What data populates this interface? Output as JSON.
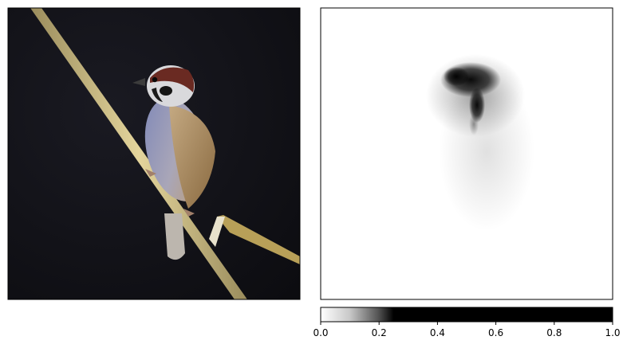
{
  "figure": {
    "panels": [
      {
        "name": "input-image",
        "content": "photo of a sparrow perched on a dry reed stem against a dark background"
      },
      {
        "name": "attribution-heatmap",
        "content": "grayscale saliency map concentrated on the bird's head and breast"
      }
    ]
  },
  "chart_data": [
    {
      "type": "heatmap",
      "title": "",
      "xlabel": "",
      "ylabel": "",
      "axes_visible": false,
      "grid": false,
      "colormap": "gray_r",
      "clim": [
        0,
        1
      ]
    },
    {
      "type": "colorbar",
      "orientation": "horizontal",
      "ticks": [
        0.0,
        0.2,
        0.4,
        0.6,
        0.8,
        1.0
      ],
      "tick_labels": [
        "0.0",
        "0.2",
        "0.4",
        "0.6",
        "0.8",
        "1.0"
      ],
      "range": [
        0,
        1
      ],
      "colormap_stops": [
        {
          "value": 0.0,
          "color": "#ffffff"
        },
        {
          "value": 0.1,
          "color": "#c8c8c8"
        },
        {
          "value": 0.2,
          "color": "#505050"
        },
        {
          "value": 0.25,
          "color": "#000000"
        },
        {
          "value": 1.0,
          "color": "#000000"
        }
      ]
    }
  ]
}
